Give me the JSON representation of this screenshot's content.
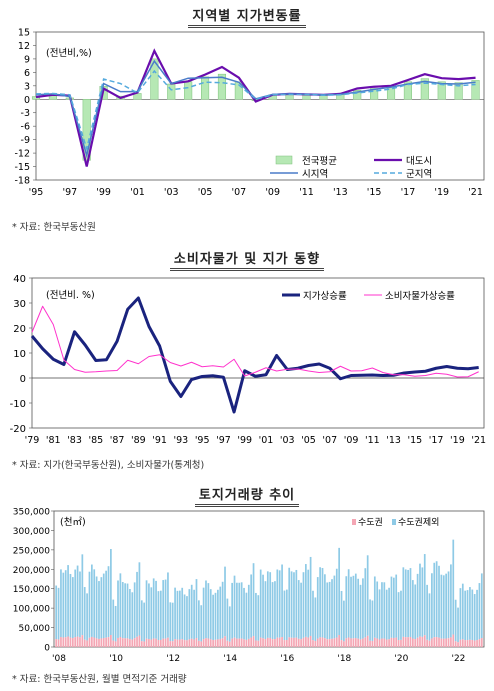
{
  "chart_data": [
    {
      "type": "bar+line",
      "title": "지역별 지가변동률",
      "unit_label": "(전년비,%)",
      "yticks": [
        15,
        12,
        9,
        6,
        3,
        0,
        -3,
        -6,
        -9,
        -12,
        -15,
        -18
      ],
      "ylim": [
        -18,
        15
      ],
      "xlim": [
        1995,
        2021.5
      ],
      "xtick_labels": [
        "'95",
        "'97",
        "'99",
        "'01",
        "'03",
        "'05",
        "'07",
        "'09",
        "'11",
        "'13",
        "'15",
        "'17",
        "'19",
        "'21"
      ],
      "xtick_years": [
        1995,
        1997,
        1999,
        2001,
        2003,
        2005,
        2007,
        2009,
        2011,
        2013,
        2015,
        2017,
        2019,
        2021
      ],
      "years": [
        1995,
        1996,
        1997,
        1998,
        1999,
        2000,
        2001,
        2002,
        2003,
        2004,
        2005,
        2006,
        2007,
        2008,
        2009,
        2010,
        2011,
        2012,
        2013,
        2014,
        2015,
        2016,
        2017,
        2018,
        2019,
        2020,
        2021
      ],
      "series": [
        {
          "name": "전국평균",
          "kind": "bar",
          "color": "#b6e8b4",
          "values": [
            0.6,
            1.0,
            0.3,
            -13.6,
            2.9,
            0.7,
            1.3,
            9.0,
            3.4,
            3.9,
            5.0,
            5.6,
            3.9,
            -0.3,
            1.0,
            1.1,
            1.2,
            1.0,
            1.1,
            2.0,
            2.4,
            2.7,
            3.9,
            4.6,
            3.9,
            3.7,
            4.2
          ]
        },
        {
          "name": "대도시",
          "kind": "line",
          "color": "#6a0dad",
          "values": [
            0.5,
            1.0,
            0.8,
            -15.0,
            2.4,
            0.3,
            1.5,
            10.8,
            3.5,
            4.0,
            5.5,
            7.2,
            4.8,
            -0.5,
            1.0,
            1.2,
            1.1,
            1.0,
            1.2,
            2.4,
            2.8,
            3.0,
            4.3,
            5.6,
            4.7,
            4.5,
            4.8
          ]
        },
        {
          "name": "시지역",
          "kind": "line",
          "color": "#4a7cc9",
          "values": [
            1.0,
            1.2,
            0.6,
            -12.5,
            3.5,
            1.7,
            1.7,
            8.5,
            3.5,
            4.7,
            4.8,
            4.9,
            3.8,
            0.1,
            1.1,
            1.2,
            1.1,
            1.0,
            1.1,
            1.6,
            2.2,
            2.7,
            3.4,
            4.0,
            3.5,
            3.4,
            3.8
          ]
        },
        {
          "name": "군지역",
          "kind": "dashed",
          "color": "#55aadd",
          "values": [
            1.2,
            1.3,
            1.0,
            -11.0,
            4.5,
            3.5,
            1.4,
            6.3,
            2.1,
            2.6,
            3.8,
            3.7,
            3.2,
            0.0,
            1.0,
            1.1,
            1.1,
            0.9,
            1.0,
            1.4,
            1.8,
            2.3,
            3.3,
            3.6,
            3.3,
            3.0,
            3.3
          ]
        }
      ],
      "legend_position": "bottom-right",
      "source": "*  자료: 한국부동산원"
    },
    {
      "type": "line",
      "title": "소비자물가 및 지가 동향",
      "unit_label": "(전년비. %)",
      "yticks": [
        40,
        30,
        20,
        10,
        0,
        -10,
        -20
      ],
      "ylim": [
        -20,
        40
      ],
      "xlim": [
        1979,
        2021.5
      ],
      "xtick_labels": [
        "'79",
        "'81",
        "'83",
        "'85",
        "'87",
        "'89",
        "'91",
        "'93",
        "'95",
        "'97",
        "'99",
        "'01",
        "'03",
        "'05",
        "'07",
        "'09",
        "'11",
        "'13",
        "'15",
        "'17",
        "'19",
        "'21"
      ],
      "xtick_years": [
        1979,
        1981,
        1983,
        1985,
        1987,
        1989,
        1991,
        1993,
        1995,
        1997,
        1999,
        2001,
        2003,
        2005,
        2007,
        2009,
        2011,
        2013,
        2015,
        2017,
        2019,
        2021
      ],
      "years": [
        1979,
        1980,
        1981,
        1982,
        1983,
        1984,
        1985,
        1986,
        1987,
        1988,
        1989,
        1990,
        1991,
        1992,
        1993,
        1994,
        1995,
        1996,
        1997,
        1998,
        1999,
        2000,
        2001,
        2002,
        2003,
        2004,
        2005,
        2006,
        2007,
        2008,
        2009,
        2010,
        2011,
        2012,
        2013,
        2014,
        2015,
        2016,
        2017,
        2018,
        2019,
        2020,
        2021
      ],
      "series": [
        {
          "name": "지가상승률",
          "color": "#1a237e",
          "width": 3,
          "values": [
            16.8,
            11.7,
            7.5,
            5.4,
            18.5,
            13.2,
            7.0,
            7.3,
            14.7,
            27.5,
            32.0,
            20.6,
            12.8,
            -1.3,
            -7.4,
            -0.6,
            0.6,
            0.9,
            0.3,
            -13.6,
            2.9,
            0.7,
            1.3,
            9.0,
            3.4,
            3.9,
            5.0,
            5.6,
            3.9,
            -0.3,
            1.0,
            1.1,
            1.2,
            1.0,
            1.1,
            2.0,
            2.4,
            2.7,
            3.9,
            4.6,
            3.9,
            3.7,
            4.2
          ]
        },
        {
          "name": "소비자물가상승률",
          "color": "#ff33cc",
          "width": 1,
          "values": [
            18.3,
            28.7,
            21.4,
            7.2,
            3.4,
            2.3,
            2.5,
            2.8,
            3.0,
            7.1,
            5.7,
            8.6,
            9.3,
            6.2,
            4.8,
            6.3,
            4.5,
            4.9,
            4.4,
            7.5,
            0.8,
            2.3,
            4.1,
            2.8,
            3.5,
            3.6,
            2.8,
            2.2,
            2.5,
            4.7,
            2.8,
            2.9,
            4.0,
            2.2,
            1.3,
            1.3,
            0.7,
            1.0,
            1.9,
            1.5,
            0.4,
            0.5,
            2.5
          ]
        }
      ],
      "legend_position": "top-right",
      "source": "*  자료: 지가(한국부동산원), 소비자물가(통계청)"
    },
    {
      "type": "stacked-bar",
      "title": "토지거래량 추이",
      "unit_label": "(천㎡)",
      "yticks": [
        350000,
        300000,
        250000,
        200000,
        150000,
        100000,
        50000,
        0
      ],
      "ytick_labels": [
        "350,000",
        "300,000",
        "250,000",
        "200,000",
        "150,000",
        "100,000",
        "50,000",
        "0"
      ],
      "ylim": [
        0,
        350000
      ],
      "xtick_labels": [
        "'08",
        "'10",
        "'12",
        "'14",
        "'16",
        "'18",
        "'20",
        "'22"
      ],
      "period": {
        "start": "2008-01",
        "end": "2022-12",
        "frequency": "monthly"
      },
      "series": [
        {
          "name": "수도권",
          "color": "#f4a6b4",
          "yearly_mean": [
            25000,
            23000,
            22000,
            20000,
            19000,
            20000,
            21000,
            22000,
            23000,
            22000,
            22000,
            21000,
            24000,
            23000,
            18000
          ]
        },
        {
          "name": "수도권제외",
          "color": "#8ecae6",
          "yearly_mean": [
            170000,
            165000,
            140000,
            140000,
            125000,
            130000,
            140000,
            160000,
            165000,
            160000,
            158000,
            140000,
            165000,
            175000,
            130000
          ]
        }
      ],
      "legend_position": "top-right",
      "source": "*  자료: 한국부동산원, 월별 면적기준 거래량"
    }
  ]
}
